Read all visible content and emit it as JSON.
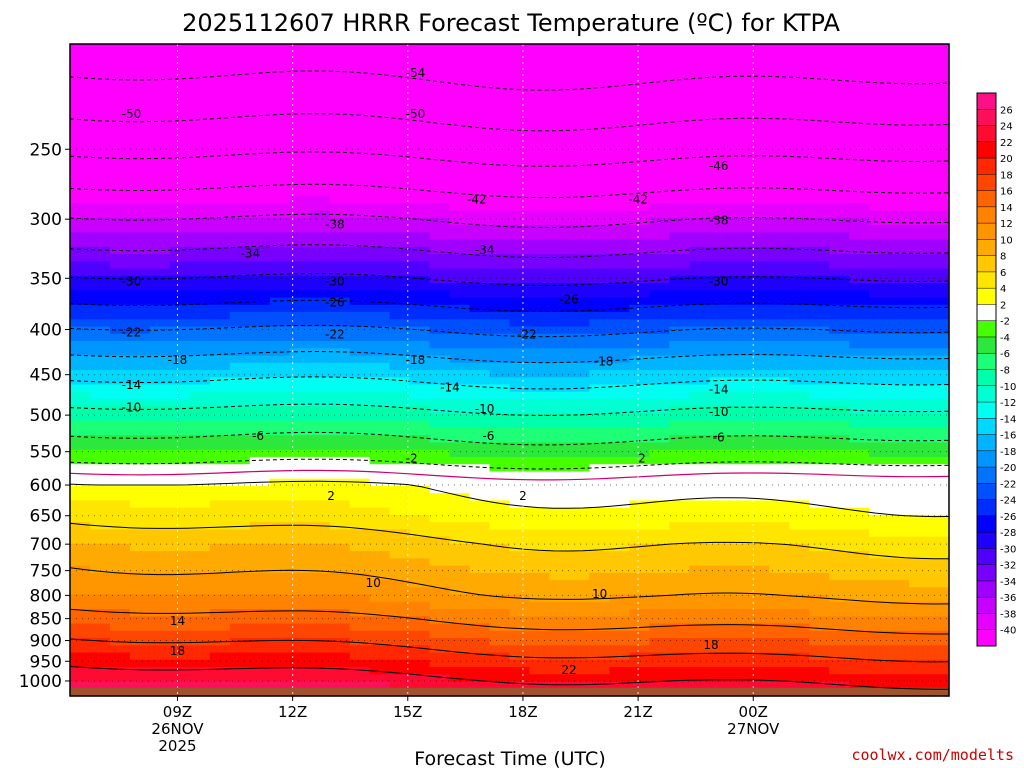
{
  "chart_data": {
    "type": "heatmap",
    "title": "2025112607 HRRR Forecast Temperature (ºC) for KTPA",
    "xlabel": "Forecast Time (UTC)",
    "ylabel": "",
    "x_range_hours": [
      6.2,
      29.1
    ],
    "y_range_hpa": [
      1040,
      190
    ],
    "y_ticks": [
      250,
      300,
      350,
      400,
      450,
      500,
      550,
      600,
      650,
      700,
      750,
      800,
      850,
      900,
      950,
      1000
    ],
    "x_ticks": [
      {
        "hour": 9,
        "label": "09Z",
        "sub1": "26NOV",
        "sub2": "2025"
      },
      {
        "hour": 12,
        "label": "12Z",
        "sub1": "",
        "sub2": ""
      },
      {
        "hour": 15,
        "label": "15Z",
        "sub1": "",
        "sub2": ""
      },
      {
        "hour": 18,
        "label": "18Z",
        "sub1": "",
        "sub2": ""
      },
      {
        "hour": 21,
        "label": "21Z",
        "sub1": "",
        "sub2": ""
      },
      {
        "hour": 24,
        "label": "00Z",
        "sub1": "27NOV",
        "sub2": ""
      }
    ],
    "contour_levels": [
      -54,
      -50,
      -46,
      -42,
      -38,
      -34,
      -30,
      -26,
      -22,
      -18,
      -14,
      -10,
      -6,
      -2,
      0,
      2,
      6,
      10,
      14,
      18,
      22
    ],
    "contour_labels": [
      {
        "value": "-54",
        "hour": 15.2,
        "p": 205
      },
      {
        "value": "-50",
        "hour": 7.8,
        "p": 228
      },
      {
        "value": "-50",
        "hour": 15.2,
        "p": 228
      },
      {
        "value": "-46",
        "hour": 23.1,
        "p": 261
      },
      {
        "value": "-42",
        "hour": 16.8,
        "p": 285
      },
      {
        "value": "-42",
        "hour": 21.0,
        "p": 285
      },
      {
        "value": "-38",
        "hour": 13.1,
        "p": 304
      },
      {
        "value": "-38",
        "hour": 23.1,
        "p": 301
      },
      {
        "value": "-34",
        "hour": 10.9,
        "p": 328
      },
      {
        "value": "-34",
        "hour": 17.0,
        "p": 325
      },
      {
        "value": "-30",
        "hour": 7.8,
        "p": 353
      },
      {
        "value": "-30",
        "hour": 13.1,
        "p": 353
      },
      {
        "value": "-30",
        "hour": 23.1,
        "p": 353
      },
      {
        "value": "-26",
        "hour": 13.1,
        "p": 373
      },
      {
        "value": "-26",
        "hour": 19.2,
        "p": 370
      },
      {
        "value": "-22",
        "hour": 7.8,
        "p": 403
      },
      {
        "value": "-22",
        "hour": 13.1,
        "p": 405
      },
      {
        "value": "-22",
        "hour": 18.1,
        "p": 405
      },
      {
        "value": "-18",
        "hour": 9.0,
        "p": 433
      },
      {
        "value": "-18",
        "hour": 15.2,
        "p": 433
      },
      {
        "value": "-18",
        "hour": 20.1,
        "p": 435
      },
      {
        "value": "-14",
        "hour": 7.8,
        "p": 462
      },
      {
        "value": "-14",
        "hour": 16.1,
        "p": 465
      },
      {
        "value": "-14",
        "hour": 23.1,
        "p": 468
      },
      {
        "value": "-10",
        "hour": 7.8,
        "p": 490
      },
      {
        "value": "-10",
        "hour": 17.0,
        "p": 492
      },
      {
        "value": "-10",
        "hour": 23.1,
        "p": 496
      },
      {
        "value": "-6",
        "hour": 11.1,
        "p": 528
      },
      {
        "value": "-6",
        "hour": 17.1,
        "p": 528
      },
      {
        "value": "-6",
        "hour": 23.1,
        "p": 530
      },
      {
        "value": "-2",
        "hour": 15.1,
        "p": 560
      },
      {
        "value": "2",
        "hour": 21.1,
        "p": 560
      },
      {
        "value": "2",
        "hour": 13.0,
        "p": 617
      },
      {
        "value": "2",
        "hour": 18.0,
        "p": 617
      },
      {
        "value": "10",
        "hour": 14.1,
        "p": 775
      },
      {
        "value": "10",
        "hour": 20.0,
        "p": 797
      },
      {
        "value": "14",
        "hour": 9.0,
        "p": 855
      },
      {
        "value": "18",
        "hour": 9.0,
        "p": 925
      },
      {
        "value": "18",
        "hour": 22.9,
        "p": 910
      },
      {
        "value": "22",
        "hour": 19.2,
        "p": 972
      }
    ],
    "colorbar": {
      "labels": [
        "26",
        "24",
        "22",
        "20",
        "18",
        "16",
        "14",
        "12",
        "10",
        "8",
        "6",
        "4",
        "2",
        "-2",
        "-4",
        "-6",
        "-8",
        "-10",
        "-12",
        "-14",
        "-16",
        "-18",
        "-20",
        "-22",
        "-24",
        "-26",
        "-28",
        "-30",
        "-32",
        "-34",
        "-36",
        "-38",
        "-40"
      ],
      "colors": [
        "#ff0f87",
        "#ff0f5a",
        "#ff0a32",
        "#ff0000",
        "#ff2800",
        "#ff4600",
        "#ff6400",
        "#ff8200",
        "#ff9600",
        "#ffaa00",
        "#ffc800",
        "#ffe600",
        "#ffff00",
        "#ffffff",
        "#46ff00",
        "#2ce83c",
        "#1eff78",
        "#00ffaa",
        "#00ffd2",
        "#00fff0",
        "#00d8ff",
        "#00b4ff",
        "#0096ff",
        "#0073ff",
        "#0050ff",
        "#002dff",
        "#0000ff",
        "#1e00ff",
        "#5000ff",
        "#7800ff",
        "#a000ff",
        "#c800ff",
        "#e600ff",
        "#ff00ff"
      ]
    }
  },
  "credit": "coolwx.com/modelts"
}
